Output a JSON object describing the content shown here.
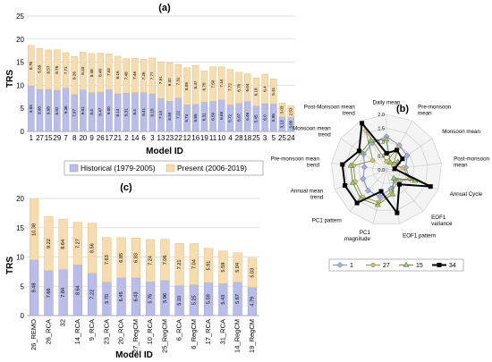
{
  "colors": {
    "historical": "#b8bde9",
    "historical_edge": "#8f96d6",
    "present": "#f6dcae",
    "present_edge": "#d9b87a",
    "grid": "#d9d9d9",
    "radar_1": "#6f7fc4",
    "radar_27": "#8c8c3a",
    "radar_15": "#5e7d2e",
    "radar_34": "#000000",
    "radar_bg": "#f4f4f4"
  },
  "chart_data": [
    {
      "panel": "(a)",
      "type": "bar",
      "stacked": true,
      "ylabel": "TRS",
      "xlabel": "Model ID",
      "ylim": [
        0,
        25
      ],
      "yticks": [
        0,
        5,
        10,
        15,
        20,
        25
      ],
      "grid": true,
      "legend_position": "bottom",
      "categories": [
        "1",
        "27",
        "15",
        "29",
        "7",
        "8",
        "20",
        "9",
        "26",
        "17",
        "21",
        "2",
        "14",
        "6",
        "3",
        "13",
        "23",
        "22",
        "12",
        "16",
        "19",
        "11",
        "10",
        "4",
        "28",
        "18",
        "25",
        "3",
        "5",
        "25",
        "24"
      ],
      "series": [
        {
          "name": "Historical (1979-2005)",
          "values": [
            9.85,
            9.08,
            9.08,
            8.92,
            9.36,
            7.97,
            9.01,
            8.4,
            8.47,
            9.0,
            8.14,
            8.31,
            8.4,
            8.41,
            8.15,
            7.14,
            6.55,
            7.22,
            5.74,
            5.85,
            6.31,
            6.5,
            6.85,
            5.72,
            6.07,
            6.46,
            5.45,
            6.0,
            5.96,
            3.13,
            3.0
          ],
          "labels": [
            "9.85",
            "9.08",
            "9.08",
            "8.92",
            "9.36",
            "7.97",
            "9.01",
            "8.4",
            "8.47",
            "9.00",
            "8.14",
            "8.31",
            "8.4",
            "8.41",
            "8.15",
            "7.14",
            "6.55",
            "7.22",
            "5.74",
            "5.85",
            "6.31",
            "6.50",
            "6.85",
            "5.72",
            "6.07",
            "6.46",
            "5.45",
            "6.0",
            "5.96",
            "3.13",
            "3.00"
          ]
        },
        {
          "name": "Present (2006-2019)",
          "values": [
            8.78,
            8.89,
            8.57,
            8.78,
            7.71,
            8.26,
            8.23,
            8.48,
            8.48,
            7.82,
            8.16,
            7.48,
            7.46,
            7.26,
            7.77,
            7.91,
            8.32,
            7.31,
            8.08,
            8.47,
            6.78,
            7.5,
            7.14,
            7.72,
            6.76,
            6.04,
            6.18,
            6.4,
            5.41,
            3.03,
            2.53
          ],
          "labels": [
            "8.78",
            "8.89",
            "8.57",
            "8.78",
            "7.71",
            "8.26",
            "8.23",
            "8.48",
            "8.48",
            "7.82",
            "8.16",
            "7.48",
            "7.46",
            "7.26",
            "7.77",
            "7.91",
            "8.32",
            "7.31",
            "8.08",
            "8.47",
            "6.78",
            "7.50",
            "7.14",
            "7.72",
            "6.76",
            "6.04",
            "6.18",
            "6.4",
            "5.41",
            "3.03",
            "2.53"
          ]
        }
      ]
    },
    {
      "panel": "(b)",
      "type": "radar",
      "axes": [
        "Daily mean",
        "Pre-monsoon mean",
        "Monsoon mean",
        "Post-monsoon mean",
        "Annual Cycle",
        "EOF1 variance",
        "EOF1 pattern",
        "PC1 magnitude",
        "PC1 pattern",
        "Annual mean trend",
        "Pre-monsoon mean trend",
        "Monsoon mean trend",
        "Post-Monsoon mean trend"
      ],
      "rlim": [
        0,
        2.0
      ],
      "rticks": [
        "0.0",
        "0.5",
        "1.0",
        "1.5",
        "2.0"
      ],
      "legend_position": "bottom",
      "series": [
        {
          "name": "1",
          "values": [
            1.2,
            1.0,
            0.9,
            0.7,
            0.9,
            0.5,
            0.7,
            1.0,
            1.0,
            0.9,
            0.8,
            1.0,
            1.1
          ]
        },
        {
          "name": "27",
          "values": [
            0.3,
            0.9,
            0.3,
            0.6,
            0.9,
            0.6,
            0.8,
            1.2,
            1.3,
            1.2,
            1.2,
            0.6,
            1.6
          ]
        },
        {
          "name": "15",
          "values": [
            1.1,
            0.3,
            0.5,
            0.3,
            1.1,
            0.4,
            0.9,
            1.3,
            1.4,
            1.3,
            1.3,
            1.1,
            1.2
          ]
        },
        {
          "name": "34",
          "values": [
            0.6,
            0.8,
            0.7,
            0.3,
            1.7,
            0.7,
            1.6,
            0.8,
            1.6,
            1.6,
            1.6,
            1.2,
            1.9
          ]
        }
      ]
    },
    {
      "panel": "(c)",
      "type": "bar",
      "stacked": true,
      "ylabel": "TRS",
      "xlabel": "Model ID",
      "ylim": [
        0,
        20
      ],
      "yticks": [
        0,
        5,
        10,
        15,
        20
      ],
      "grid": true,
      "categories": [
        "26_REMO",
        "26_RCA",
        "32",
        "14_RCA",
        "9_RCA",
        "23_RCA",
        "20_RCA",
        "27_RegCM",
        "10_RCA",
        "25_RegCM",
        "6_RCA",
        "6_RegCM",
        "17_RCA",
        "31_RCA",
        "14_RegCM",
        "19_RegCM"
      ],
      "series": [
        {
          "name": "Historical (1979-2005)",
          "values": [
            9.48,
            7.66,
            7.84,
            8.64,
            7.22,
            5.7,
            6.45,
            6.43,
            5.76,
            5.96,
            5.1,
            5.25,
            5.59,
            5.43,
            5.67,
            4.79
          ],
          "labels": [
            "9.48",
            "7.66",
            "7.84",
            "8.64",
            "7.22",
            "5.70",
            "6.45",
            "6.43",
            "5.76",
            "5.96",
            "5.10",
            "5.25",
            "5.59",
            "5.43",
            "5.67",
            "4.79"
          ]
        },
        {
          "name": "Present (2006-2019)",
          "values": [
            10.38,
            9.22,
            8.64,
            7.27,
            8.56,
            7.63,
            6.85,
            6.83,
            7.24,
            7.06,
            7.21,
            7.04,
            5.91,
            5.59,
            5.04,
            5.03
          ],
          "labels": [
            "10.38",
            "9.22",
            "8.64",
            "7.27",
            "8.56",
            "7.63",
            "6.85",
            "6.83",
            "7.24",
            "7.06",
            "7.21",
            "7.04",
            "5.91",
            "5.59",
            "5.04",
            "5.03"
          ]
        }
      ]
    }
  ]
}
